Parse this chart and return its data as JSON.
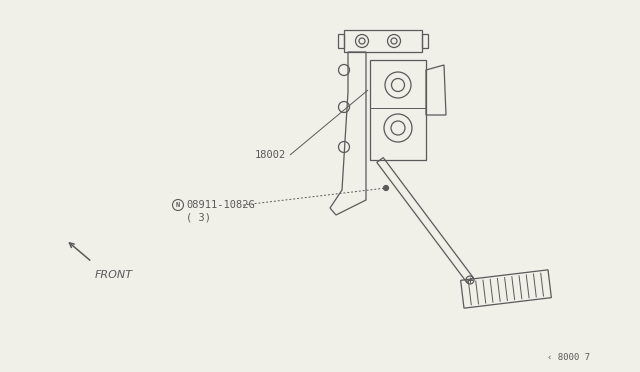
{
  "background_color": "#f0efe8",
  "line_color": "#5a5a5a",
  "label_18002": "18002",
  "label_bolt_num": "08911-1082G",
  "label_bolt_qty": "( 3)",
  "label_front": "FRONT",
  "label_ref": "‹ 8000 7",
  "lw": 0.9,
  "label_fontsize": 7.5,
  "ref_fontsize": 6.5,
  "front_fontsize": 8
}
